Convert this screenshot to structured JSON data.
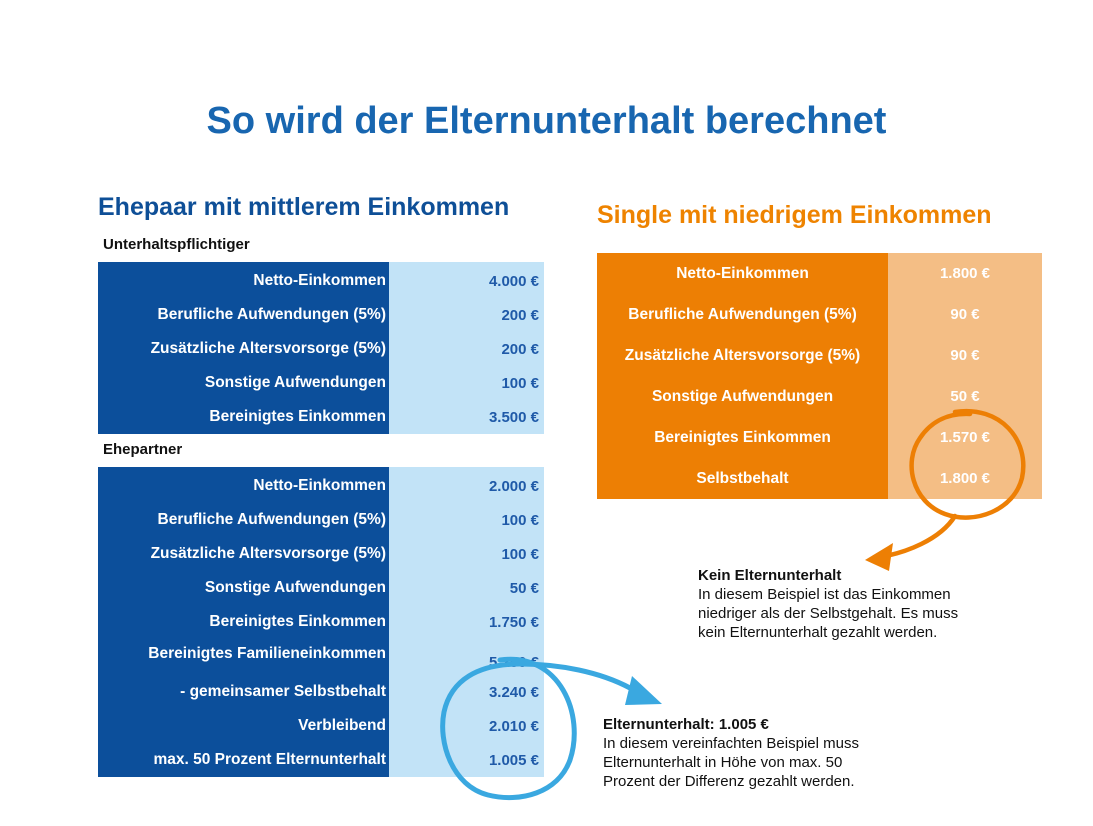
{
  "title": "So wird der Elternunterhalt berechnet",
  "couple": {
    "heading": "Ehepaar mit mittlerem Einkommen",
    "obligor_label": "Unterhaltspflichtiger",
    "obligor_rows": [
      {
        "label": "Netto-Einkommen",
        "value": "4.000 €"
      },
      {
        "label": "Berufliche Aufwendungen (5%)",
        "value": "200 €"
      },
      {
        "label": "Zusätzliche Altersvorsorge (5%)",
        "value": "200 €"
      },
      {
        "label": "Sonstige Aufwendungen",
        "value": "100 €"
      },
      {
        "label": "Bereinigtes Einkommen",
        "value": "3.500 €"
      }
    ],
    "spouse_label": "Ehepartner",
    "spouse_rows": [
      {
        "label": "Netto-Einkommen",
        "value": "2.000 €"
      },
      {
        "label": "Berufliche Aufwendungen (5%)",
        "value": "100 €"
      },
      {
        "label": "Zusätzliche Altersvorsorge (5%)",
        "value": "100 €"
      },
      {
        "label": "Sonstige Aufwendungen",
        "value": "50 €"
      },
      {
        "label": "Bereinigtes Einkommen",
        "value": "1.750 €"
      },
      {
        "label": "Bereinigtes Familieneinkommen",
        "value": "5.250 €"
      },
      {
        "label": "- gemeinsamer Selbstbehalt",
        "value": "3.240 €"
      },
      {
        "label": "Verbleibend",
        "value": "2.010 €"
      },
      {
        "label": "max. 50 Prozent Elternunterhalt",
        "value": "1.005 €"
      }
    ],
    "note": {
      "title": "Elternunterhalt: 1.005 €",
      "lines": [
        "In diesem vereinfachten Beispiel muss",
        "Elternunterhalt in Höhe von max. 50",
        "Prozent der Differenz gezahlt werden."
      ]
    }
  },
  "single": {
    "heading": "Single mit niedrigem Einkommen",
    "rows": [
      {
        "label": "Netto-Einkommen",
        "value": "1.800 €"
      },
      {
        "label": "Berufliche Aufwendungen (5%)",
        "value": "90 €"
      },
      {
        "label": "Zusätzliche Altersvorsorge (5%)",
        "value": "90 €"
      },
      {
        "label": "Sonstige Aufwendungen",
        "value": "50 €"
      },
      {
        "label": "Bereinigtes Einkommen",
        "value": "1.570 €"
      },
      {
        "label": "Selbstbehalt",
        "value": "1.800 €"
      }
    ],
    "note": {
      "title": "Kein Elternunterhalt",
      "lines": [
        "In diesem Beispiel ist das Einkommen",
        "niedriger als der Selbstgehalt. Es muss",
        "kein Elternunterhalt gezahlt werden."
      ]
    }
  },
  "colors": {
    "title_blue": "#1866b0",
    "table_blue": "#0c4f9b",
    "table_light_blue": "#c2e3f7",
    "orange": "#ed7f04",
    "light_orange": "#f4be85",
    "circle_blue": "#3aa8e0"
  }
}
